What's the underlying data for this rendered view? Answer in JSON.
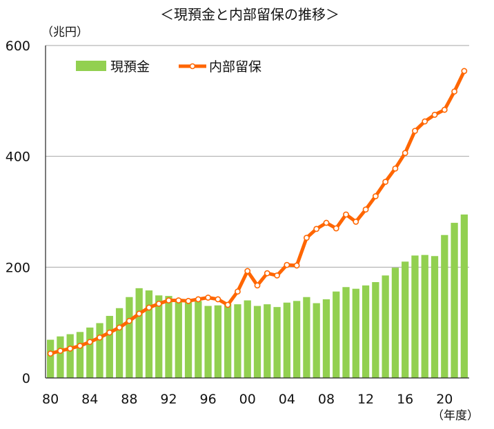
{
  "chart_data": {
    "type": "bar+line",
    "title": "＜現預金と内部留保の推移＞",
    "ylabel": "（兆円）",
    "xlabel": "（年度）",
    "ylim": [
      0,
      600
    ],
    "yticks": [
      "0",
      "200",
      "400",
      "600"
    ],
    "yticks_values": [
      0,
      200,
      400,
      600
    ],
    "gridlines": [
      200,
      400,
      600
    ],
    "xtick_labels": [
      "80",
      "84",
      "88",
      "92",
      "96",
      "00",
      "04",
      "08",
      "12",
      "16",
      "20"
    ],
    "categories": [
      1980,
      1981,
      1982,
      1983,
      1984,
      1985,
      1986,
      1987,
      1988,
      1989,
      1990,
      1991,
      1992,
      1993,
      1994,
      1995,
      1996,
      1997,
      1998,
      1999,
      2000,
      2001,
      2002,
      2003,
      2004,
      2005,
      2006,
      2007,
      2008,
      2009,
      2010,
      2011,
      2012,
      2013,
      2014,
      2015,
      2016,
      2017,
      2018,
      2019,
      2020,
      2021,
      2022
    ],
    "legend_position": "top-left",
    "series": [
      {
        "name": "現預金",
        "type": "bar",
        "color": "#92D050",
        "values": [
          69,
          75,
          79,
          83,
          91,
          99,
          112,
          126,
          146,
          162,
          158,
          149,
          148,
          143,
          140,
          139,
          130,
          131,
          134,
          133,
          140,
          130,
          133,
          128,
          136,
          139,
          146,
          135,
          142,
          156,
          164,
          161,
          167,
          173,
          185,
          199,
          210,
          221,
          222,
          220,
          258,
          280,
          295
        ]
      },
      {
        "name": "内部留保",
        "type": "line",
        "color": "#FF6600",
        "values": [
          44,
          49,
          53,
          58,
          65,
          73,
          82,
          91,
          103,
          116,
          127,
          134,
          140,
          140,
          139,
          142,
          145,
          142,
          132,
          156,
          193,
          167,
          189,
          185,
          204,
          203,
          253,
          269,
          280,
          270,
          295,
          282,
          304,
          328,
          354,
          378,
          406,
          446,
          463,
          475,
          484,
          517,
          554
        ]
      }
    ]
  }
}
